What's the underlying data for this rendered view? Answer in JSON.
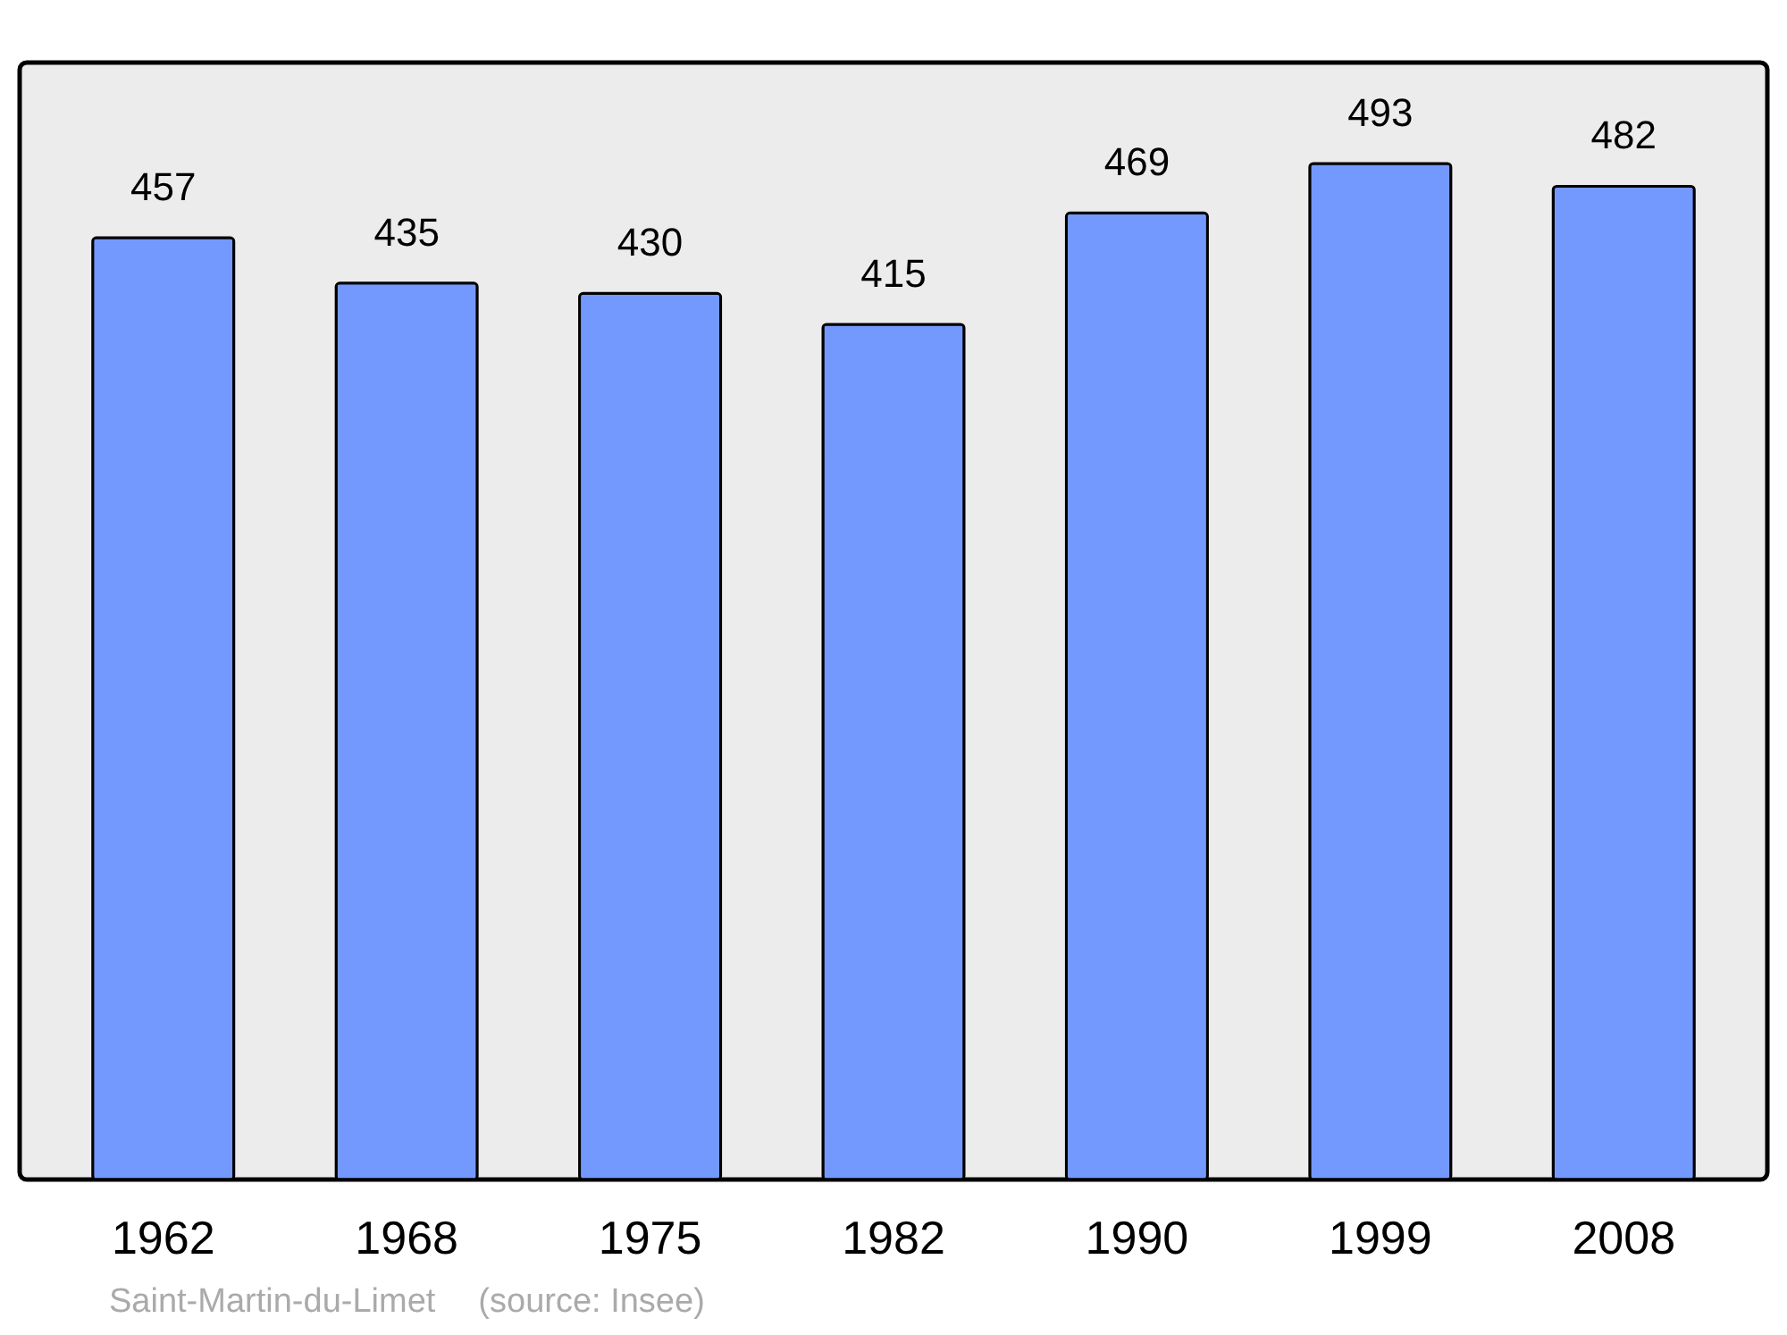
{
  "chart_data": {
    "type": "bar",
    "categories": [
      "1962",
      "1968",
      "1975",
      "1982",
      "1990",
      "1999",
      "2008"
    ],
    "values": [
      457,
      435,
      430,
      415,
      469,
      493,
      482
    ],
    "color": "#7399ff",
    "ylim": [
      0,
      542
    ],
    "data_labels": true,
    "annotations": [
      "Saint-Martin-du-Limet",
      "(source: Insee)"
    ]
  }
}
